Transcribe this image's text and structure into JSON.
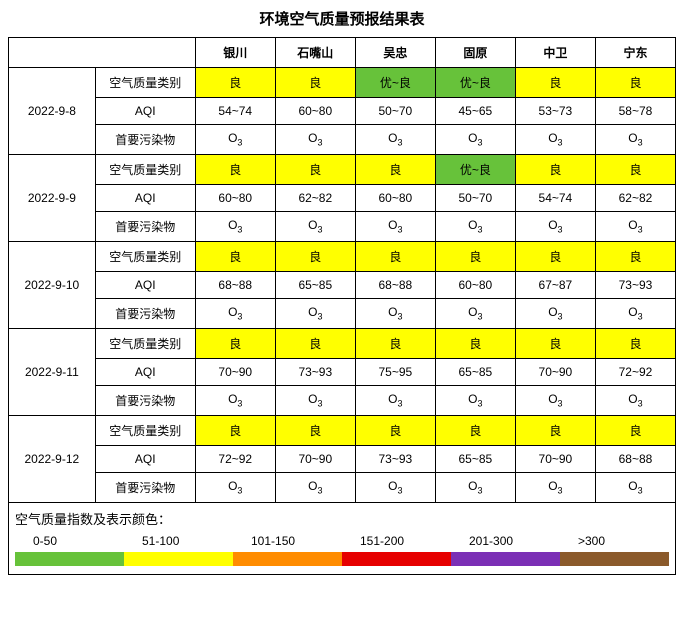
{
  "title": "环境空气质量预报结果表",
  "cities": [
    "银川",
    "石嘴山",
    "吴忠",
    "固原",
    "中卫",
    "宁东"
  ],
  "rowLabels": {
    "quality": "空气质量类别",
    "aqi": "AQI",
    "pollutant": "首要污染物"
  },
  "colors": {
    "excellent_good": "#67c23a",
    "good": "#ffff00",
    "border": "#000000",
    "bg": "#ffffff"
  },
  "days": [
    {
      "date": "2022-9-8",
      "quality": [
        {
          "text": "良",
          "bg": "#ffff00"
        },
        {
          "text": "良",
          "bg": "#ffff00"
        },
        {
          "text": "优~良",
          "bg": "#67c23a"
        },
        {
          "text": "优~良",
          "bg": "#67c23a"
        },
        {
          "text": "良",
          "bg": "#ffff00"
        },
        {
          "text": "良",
          "bg": "#ffff00"
        }
      ],
      "aqi": [
        "54~74",
        "60~80",
        "50~70",
        "45~65",
        "53~73",
        "58~78"
      ],
      "pollutant": [
        "O₃",
        "O₃",
        "O₃",
        "O₃",
        "O₃",
        "O₃"
      ]
    },
    {
      "date": "2022-9-9",
      "quality": [
        {
          "text": "良",
          "bg": "#ffff00"
        },
        {
          "text": "良",
          "bg": "#ffff00"
        },
        {
          "text": "良",
          "bg": "#ffff00"
        },
        {
          "text": "优~良",
          "bg": "#67c23a"
        },
        {
          "text": "良",
          "bg": "#ffff00"
        },
        {
          "text": "良",
          "bg": "#ffff00"
        }
      ],
      "aqi": [
        "60~80",
        "62~82",
        "60~80",
        "50~70",
        "54~74",
        "62~82"
      ],
      "pollutant": [
        "O₃",
        "O₃",
        "O₃",
        "O₃",
        "O₃",
        "O₃"
      ]
    },
    {
      "date": "2022-9-10",
      "quality": [
        {
          "text": "良",
          "bg": "#ffff00"
        },
        {
          "text": "良",
          "bg": "#ffff00"
        },
        {
          "text": "良",
          "bg": "#ffff00"
        },
        {
          "text": "良",
          "bg": "#ffff00"
        },
        {
          "text": "良",
          "bg": "#ffff00"
        },
        {
          "text": "良",
          "bg": "#ffff00"
        }
      ],
      "aqi": [
        "68~88",
        "65~85",
        "68~88",
        "60~80",
        "67~87",
        "73~93"
      ],
      "pollutant": [
        "O₃",
        "O₃",
        "O₃",
        "O₃",
        "O₃",
        "O₃"
      ]
    },
    {
      "date": "2022-9-11",
      "quality": [
        {
          "text": "良",
          "bg": "#ffff00"
        },
        {
          "text": "良",
          "bg": "#ffff00"
        },
        {
          "text": "良",
          "bg": "#ffff00"
        },
        {
          "text": "良",
          "bg": "#ffff00"
        },
        {
          "text": "良",
          "bg": "#ffff00"
        },
        {
          "text": "良",
          "bg": "#ffff00"
        }
      ],
      "aqi": [
        "70~90",
        "73~93",
        "75~95",
        "65~85",
        "70~90",
        "72~92"
      ],
      "pollutant": [
        "O₃",
        "O₃",
        "O₃",
        "O₃",
        "O₃",
        "O₃"
      ]
    },
    {
      "date": "2022-9-12",
      "quality": [
        {
          "text": "良",
          "bg": "#ffff00"
        },
        {
          "text": "良",
          "bg": "#ffff00"
        },
        {
          "text": "良",
          "bg": "#ffff00"
        },
        {
          "text": "良",
          "bg": "#ffff00"
        },
        {
          "text": "良",
          "bg": "#ffff00"
        },
        {
          "text": "良",
          "bg": "#ffff00"
        }
      ],
      "aqi": [
        "72~92",
        "70~90",
        "73~93",
        "65~85",
        "70~90",
        "68~88"
      ],
      "pollutant": [
        "O₃",
        "O₃",
        "O₃",
        "O₃",
        "O₃",
        "O₃"
      ]
    }
  ],
  "legend": {
    "title": "空气质量指数及表示颜色：",
    "ranges": [
      "0-50",
      "51-100",
      "101-150",
      "151-200",
      "201-300",
      ">300"
    ],
    "swatches": [
      "#67c23a",
      "#ffff00",
      "#ff8c00",
      "#e60000",
      "#7b2fb5",
      "#8b5a2b"
    ]
  },
  "columnWidths": {
    "date": "13%",
    "label": "15%",
    "city": "12%"
  }
}
